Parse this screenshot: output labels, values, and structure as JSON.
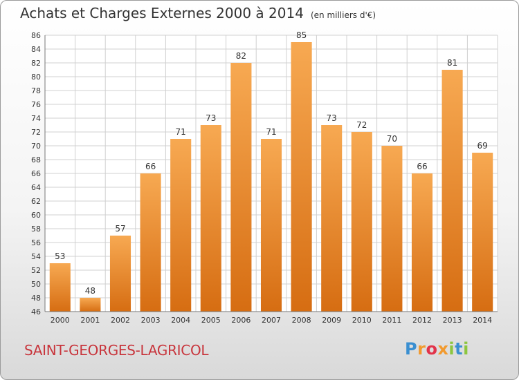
{
  "title": "Achats et Charges Externes 2000 à 2014",
  "unit": "(en milliers d'€)",
  "commune": "SAINT-GEORGES-LAGRICOL",
  "logo": {
    "letters": [
      "P",
      "r",
      "o",
      "x",
      "i",
      "t",
      "i"
    ],
    "colors": [
      "#3a8fd1",
      "#f29a2e",
      "#e2334a",
      "#f29a2e",
      "#8cc63f",
      "#3a8fd1",
      "#8cc63f"
    ]
  },
  "colors": {
    "bar_top": "#f7a952",
    "bar_bottom": "#d66d12",
    "grid": "#d0d0d0",
    "axis_text": "#333333",
    "commune": "#c8353c"
  },
  "chart_data": {
    "type": "bar",
    "categories": [
      "2000",
      "2001",
      "2002",
      "2003",
      "2004",
      "2005",
      "2006",
      "2007",
      "2008",
      "2009",
      "2010",
      "2011",
      "2012",
      "2013",
      "2014"
    ],
    "values": [
      53,
      48,
      57,
      66,
      71,
      73,
      82,
      71,
      85,
      73,
      72,
      70,
      66,
      81,
      69
    ],
    "title": "Achats et Charges Externes 2000 à 2014",
    "xlabel": "",
    "ylabel": "",
    "ylim": [
      46,
      86
    ],
    "yticks": [
      46,
      48,
      50,
      52,
      54,
      56,
      58,
      60,
      62,
      64,
      66,
      68,
      70,
      72,
      74,
      76,
      78,
      80,
      82,
      84,
      86
    ],
    "grid": true,
    "data_labels": true,
    "legend": "none"
  }
}
